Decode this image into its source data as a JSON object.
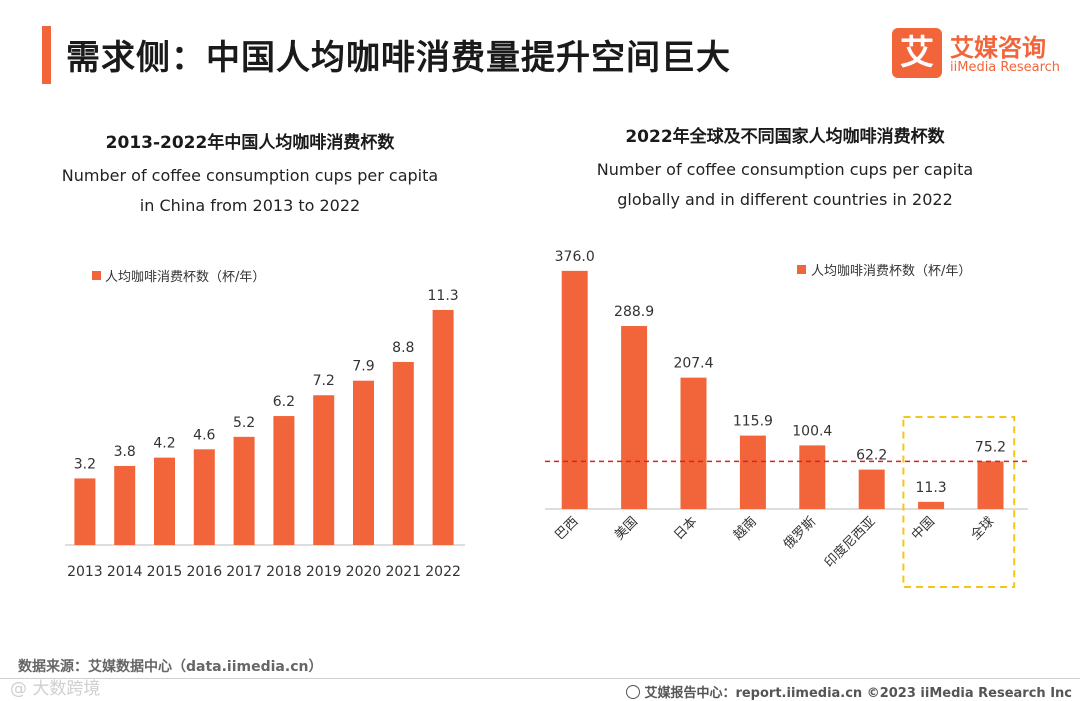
{
  "page": {
    "title": "需求侧：中国人均咖啡消费量提升空间巨大",
    "logo_mark": "艾",
    "logo_cn": "艾媒咨询",
    "logo_en": "iiMedia Research",
    "source": "数据来源：艾媒数据中心（data.iimedia.cn）",
    "footer": "艾媒报告中心：report.iimedia.cn   ©2023  iiMedia Research  Inc",
    "watermark": "@ 大数跨境"
  },
  "chart_data": [
    {
      "type": "bar",
      "title": "2013-2022年中国人均咖啡消费杯数",
      "subtitle_line1": "Number of coffee consumption cups per capita",
      "subtitle_line2": "in China from 2013 to 2022",
      "legend": "人均咖啡消费杯数（杯/年）",
      "legend_position": "top-left",
      "categories": [
        "2013",
        "2014",
        "2015",
        "2016",
        "2017",
        "2018",
        "2019",
        "2020",
        "2021",
        "2022"
      ],
      "values": [
        3.2,
        3.8,
        4.2,
        4.6,
        5.2,
        6.2,
        7.2,
        7.9,
        8.8,
        11.3
      ],
      "labels": [
        "3.2",
        "3.8",
        "4.2",
        "4.6",
        "5.2",
        "6.2",
        "7.2",
        "7.9",
        "8.8",
        "11.3"
      ],
      "ylim": [
        0,
        12.5
      ],
      "color": "#f2653a"
    },
    {
      "type": "bar",
      "title": "2022年全球及不同国家人均咖啡消费杯数",
      "subtitle_line1": "Number of coffee consumption cups per capita",
      "subtitle_line2": "globally and in different countries in 2022",
      "legend": "人均咖啡消费杯数（杯/年）",
      "legend_position": "top-right",
      "categories": [
        "巴西",
        "美国",
        "日本",
        "越南",
        "俄罗斯",
        "印度尼西亚",
        "中国",
        "全球"
      ],
      "values": [
        376.0,
        288.9,
        207.4,
        115.9,
        100.4,
        62.2,
        11.3,
        75.2
      ],
      "labels": [
        "376.0",
        "288.9",
        "207.4",
        "115.9",
        "100.4",
        "62.2",
        "11.3",
        "75.2"
      ],
      "reference_line": 75.2,
      "highlight": [
        "中国",
        "全球"
      ],
      "ylim": [
        0,
        390
      ],
      "color": "#f2653a"
    }
  ]
}
